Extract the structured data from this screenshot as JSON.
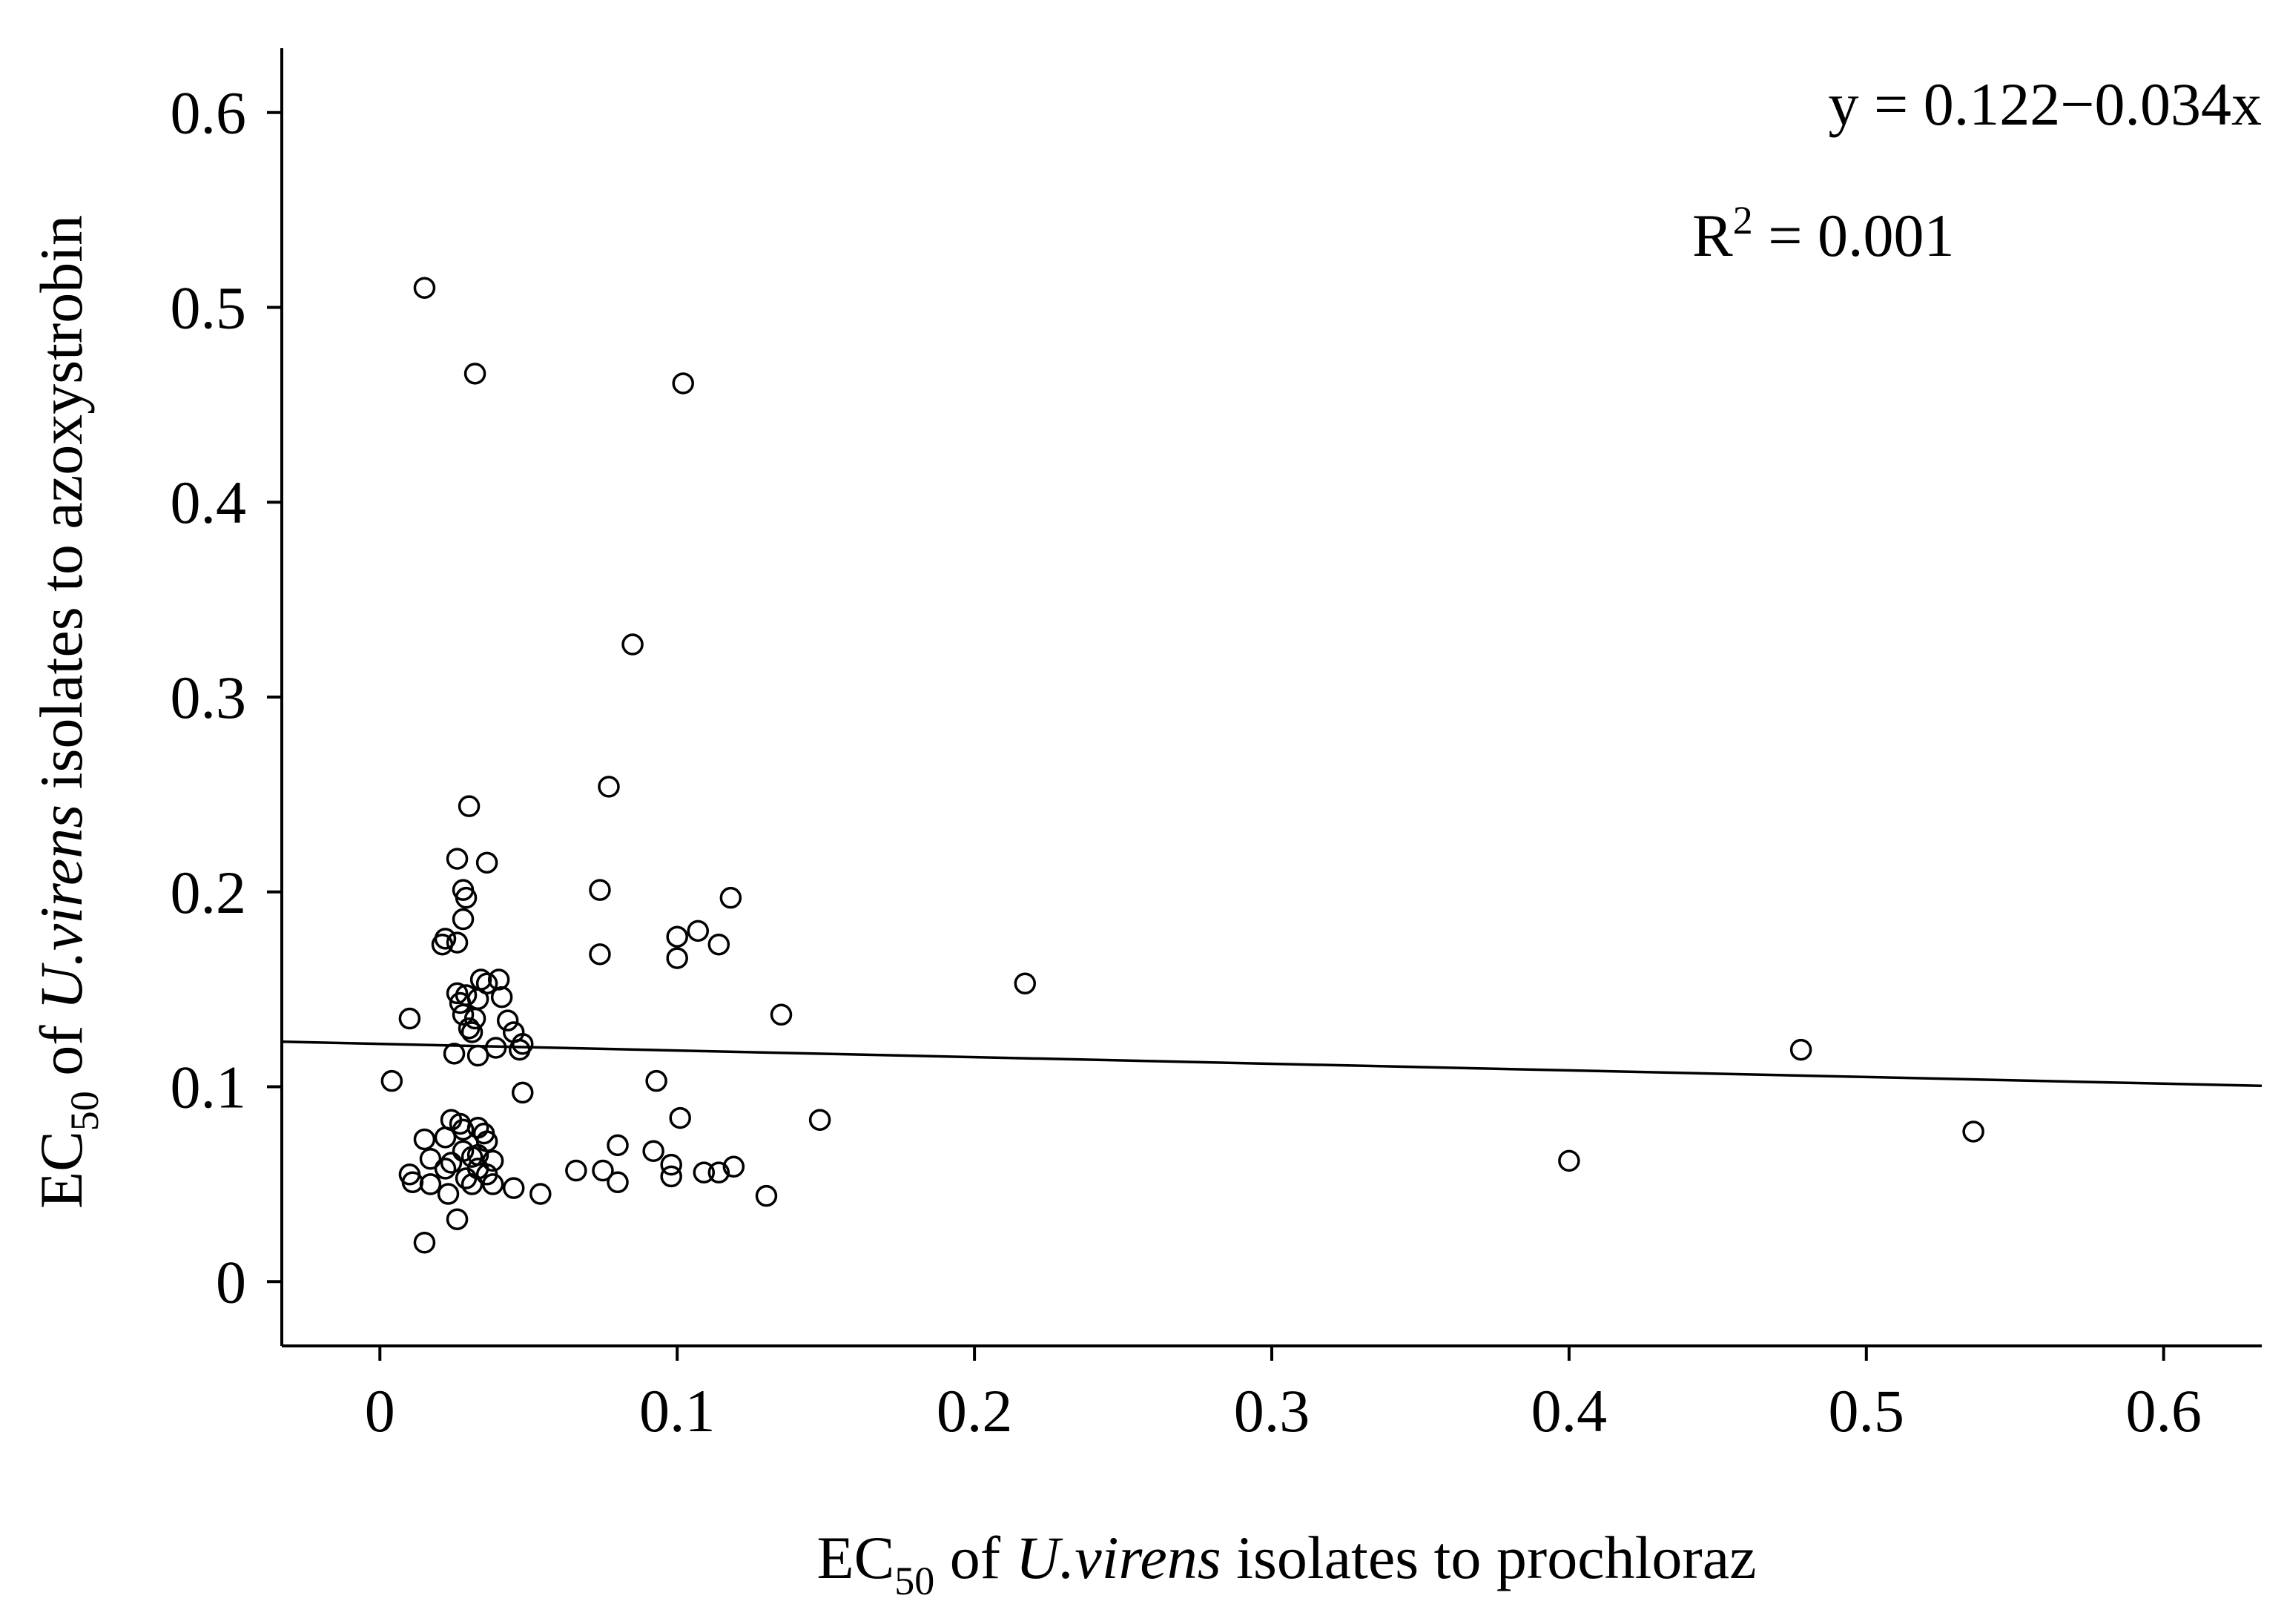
{
  "chart_data": {
    "type": "scatter",
    "x_axis": {
      "label_parts": [
        "EC",
        "50",
        " of ",
        "U.virens",
        " isolates to prochloraz"
      ],
      "range": [
        -0.033,
        0.633
      ],
      "ticks": [
        0,
        0.1,
        0.2,
        0.3,
        0.4,
        0.5,
        0.6
      ],
      "tick_labels": [
        "0",
        "0.1",
        "0.2",
        "0.3",
        "0.4",
        "0.5",
        "0.6"
      ]
    },
    "y_axis": {
      "label_parts": [
        "EC",
        "50",
        " of ",
        "U.virens",
        " isolates to azoxystrobin"
      ],
      "range": [
        -0.033,
        0.633
      ],
      "ticks": [
        0,
        0.1,
        0.2,
        0.3,
        0.4,
        0.5,
        0.6
      ],
      "tick_labels": [
        "0",
        "0.1",
        "0.2",
        "0.3",
        "0.4",
        "0.5",
        "0.6"
      ]
    },
    "annotation": {
      "equation": "y = 0.122−0.034x",
      "r2_prefix": "R",
      "r2_sup": "2",
      "r2_value": " = 0.001"
    },
    "regression": {
      "intercept": 0.122,
      "slope": -0.034,
      "x_range": [
        -0.033,
        0.633
      ]
    },
    "grid": false,
    "legend": "none",
    "points": [
      {
        "x": 0.015,
        "y": 0.51
      },
      {
        "x": 0.032,
        "y": 0.466
      },
      {
        "x": 0.102,
        "y": 0.461
      },
      {
        "x": 0.085,
        "y": 0.327
      },
      {
        "x": 0.077,
        "y": 0.254
      },
      {
        "x": 0.03,
        "y": 0.244
      },
      {
        "x": 0.026,
        "y": 0.217
      },
      {
        "x": 0.036,
        "y": 0.215
      },
      {
        "x": 0.028,
        "y": 0.201
      },
      {
        "x": 0.074,
        "y": 0.201
      },
      {
        "x": 0.029,
        "y": 0.197
      },
      {
        "x": 0.118,
        "y": 0.197
      },
      {
        "x": 0.028,
        "y": 0.186
      },
      {
        "x": 0.107,
        "y": 0.18
      },
      {
        "x": 0.1,
        "y": 0.177
      },
      {
        "x": 0.022,
        "y": 0.176
      },
      {
        "x": 0.021,
        "y": 0.173
      },
      {
        "x": 0.026,
        "y": 0.174
      },
      {
        "x": 0.114,
        "y": 0.173
      },
      {
        "x": 0.074,
        "y": 0.168
      },
      {
        "x": 0.1,
        "y": 0.166
      },
      {
        "x": 0.034,
        "y": 0.155
      },
      {
        "x": 0.04,
        "y": 0.155
      },
      {
        "x": 0.036,
        "y": 0.153
      },
      {
        "x": 0.217,
        "y": 0.153
      },
      {
        "x": 0.026,
        "y": 0.148
      },
      {
        "x": 0.029,
        "y": 0.147
      },
      {
        "x": 0.041,
        "y": 0.146
      },
      {
        "x": 0.033,
        "y": 0.145
      },
      {
        "x": 0.027,
        "y": 0.143
      },
      {
        "x": 0.135,
        "y": 0.137
      },
      {
        "x": 0.028,
        "y": 0.137
      },
      {
        "x": 0.032,
        "y": 0.135
      },
      {
        "x": 0.043,
        "y": 0.134
      },
      {
        "x": 0.01,
        "y": 0.135
      },
      {
        "x": 0.03,
        "y": 0.13
      },
      {
        "x": 0.045,
        "y": 0.128
      },
      {
        "x": 0.031,
        "y": 0.128
      },
      {
        "x": 0.048,
        "y": 0.122
      },
      {
        "x": 0.039,
        "y": 0.12
      },
      {
        "x": 0.047,
        "y": 0.119
      },
      {
        "x": 0.478,
        "y": 0.119
      },
      {
        "x": 0.025,
        "y": 0.117
      },
      {
        "x": 0.033,
        "y": 0.116
      },
      {
        "x": 0.004,
        "y": 0.103
      },
      {
        "x": 0.093,
        "y": 0.103
      },
      {
        "x": 0.048,
        "y": 0.097
      },
      {
        "x": 0.101,
        "y": 0.084
      },
      {
        "x": 0.024,
        "y": 0.083
      },
      {
        "x": 0.148,
        "y": 0.083
      },
      {
        "x": 0.027,
        "y": 0.081
      },
      {
        "x": 0.033,
        "y": 0.079
      },
      {
        "x": 0.028,
        "y": 0.078
      },
      {
        "x": 0.536,
        "y": 0.077
      },
      {
        "x": 0.035,
        "y": 0.076
      },
      {
        "x": 0.022,
        "y": 0.074
      },
      {
        "x": 0.015,
        "y": 0.073
      },
      {
        "x": 0.036,
        "y": 0.072
      },
      {
        "x": 0.08,
        "y": 0.07
      },
      {
        "x": 0.028,
        "y": 0.067
      },
      {
        "x": 0.092,
        "y": 0.067
      },
      {
        "x": 0.033,
        "y": 0.065
      },
      {
        "x": 0.031,
        "y": 0.064
      },
      {
        "x": 0.017,
        "y": 0.063
      },
      {
        "x": 0.038,
        "y": 0.062
      },
      {
        "x": 0.4,
        "y": 0.062
      },
      {
        "x": 0.024,
        "y": 0.061
      },
      {
        "x": 0.098,
        "y": 0.06
      },
      {
        "x": 0.119,
        "y": 0.059
      },
      {
        "x": 0.022,
        "y": 0.058
      },
      {
        "x": 0.033,
        "y": 0.058
      },
      {
        "x": 0.066,
        "y": 0.057
      },
      {
        "x": 0.075,
        "y": 0.057
      },
      {
        "x": 0.109,
        "y": 0.056
      },
      {
        "x": 0.114,
        "y": 0.056
      },
      {
        "x": 0.01,
        "y": 0.055
      },
      {
        "x": 0.036,
        "y": 0.055
      },
      {
        "x": 0.098,
        "y": 0.054
      },
      {
        "x": 0.029,
        "y": 0.053
      },
      {
        "x": 0.011,
        "y": 0.051
      },
      {
        "x": 0.08,
        "y": 0.051
      },
      {
        "x": 0.031,
        "y": 0.05
      },
      {
        "x": 0.017,
        "y": 0.05
      },
      {
        "x": 0.038,
        "y": 0.05
      },
      {
        "x": 0.045,
        "y": 0.048
      },
      {
        "x": 0.054,
        "y": 0.045
      },
      {
        "x": 0.023,
        "y": 0.045
      },
      {
        "x": 0.13,
        "y": 0.044
      },
      {
        "x": 0.026,
        "y": 0.032
      },
      {
        "x": 0.015,
        "y": 0.02
      }
    ]
  }
}
